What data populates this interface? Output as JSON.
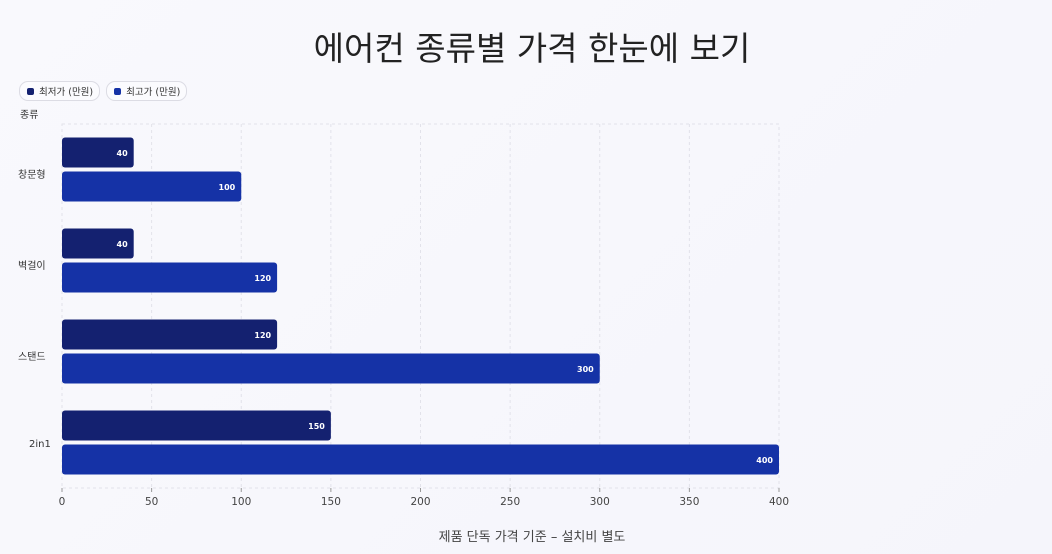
{
  "chart_data": {
    "type": "bar",
    "orientation": "horizontal",
    "title": "에어컨 종류별 가격 한눈에 보기",
    "ylabel": "종류",
    "xlabel": "",
    "categories": [
      "창문형",
      "벽걸이",
      "스탠드",
      "2in1"
    ],
    "series": [
      {
        "name": "최저가 (만원)",
        "values": [
          40,
          40,
          120,
          150
        ],
        "color": "#142170"
      },
      {
        "name": "최고가 (만원)",
        "values": [
          100,
          120,
          300,
          400
        ],
        "color": "#1532a6"
      }
    ],
    "xlim": [
      0,
      400
    ],
    "xticks": [
      0,
      50,
      100,
      150,
      200,
      250,
      300,
      350,
      400
    ],
    "grid": true,
    "legend_position": "top-left",
    "footnote": "제품 단독 가격 기준 – 설치비 별도"
  }
}
